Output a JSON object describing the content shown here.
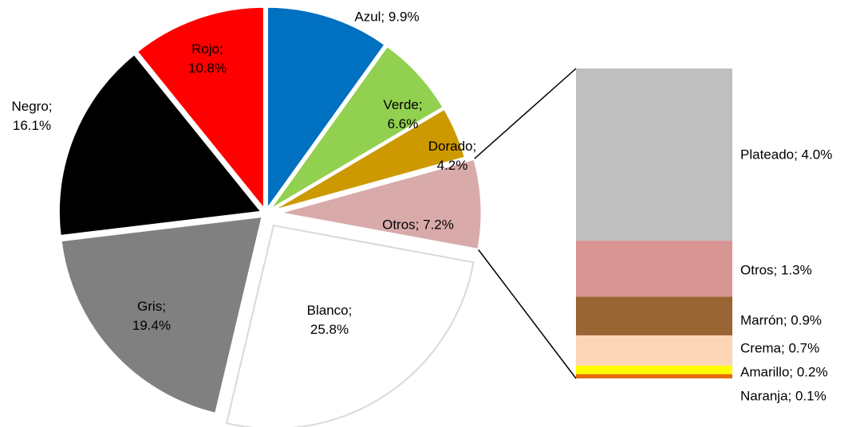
{
  "chart_data": [
    {
      "type": "pie",
      "labels": [
        "Azul; 9.9%",
        "Verde; 6.6%",
        "Dorado; 4.2%",
        "Otros; 7.2%",
        "Blanco; 25.8%",
        "Gris; 19.4%",
        "Negro; 16.1%",
        "Rojo; 10.8%"
      ],
      "values": [
        9.9,
        6.6,
        4.2,
        7.2,
        25.8,
        19.4,
        16.1,
        10.8
      ],
      "colors": [
        "#0070c0",
        "#92d050",
        "#cc9900",
        "#d9aaaa",
        "#ffffff",
        "#808080",
        "#000000",
        "#ff0000"
      ]
    },
    {
      "type": "bar",
      "labels": [
        "Naranja; 0.1%",
        "Amarillo; 0.2%",
        "Crema; 0.7%",
        "Marrón; 0.9%",
        "Otros; 1.3%",
        "Plateado; 4.0%"
      ],
      "values": [
        0.1,
        0.2,
        0.7,
        0.9,
        1.3,
        4.0
      ],
      "colors": [
        "#e46c0a",
        "#ffff00",
        "#fbd5b5",
        "#996633",
        "#d99594",
        "#bfbfbf"
      ]
    }
  ]
}
